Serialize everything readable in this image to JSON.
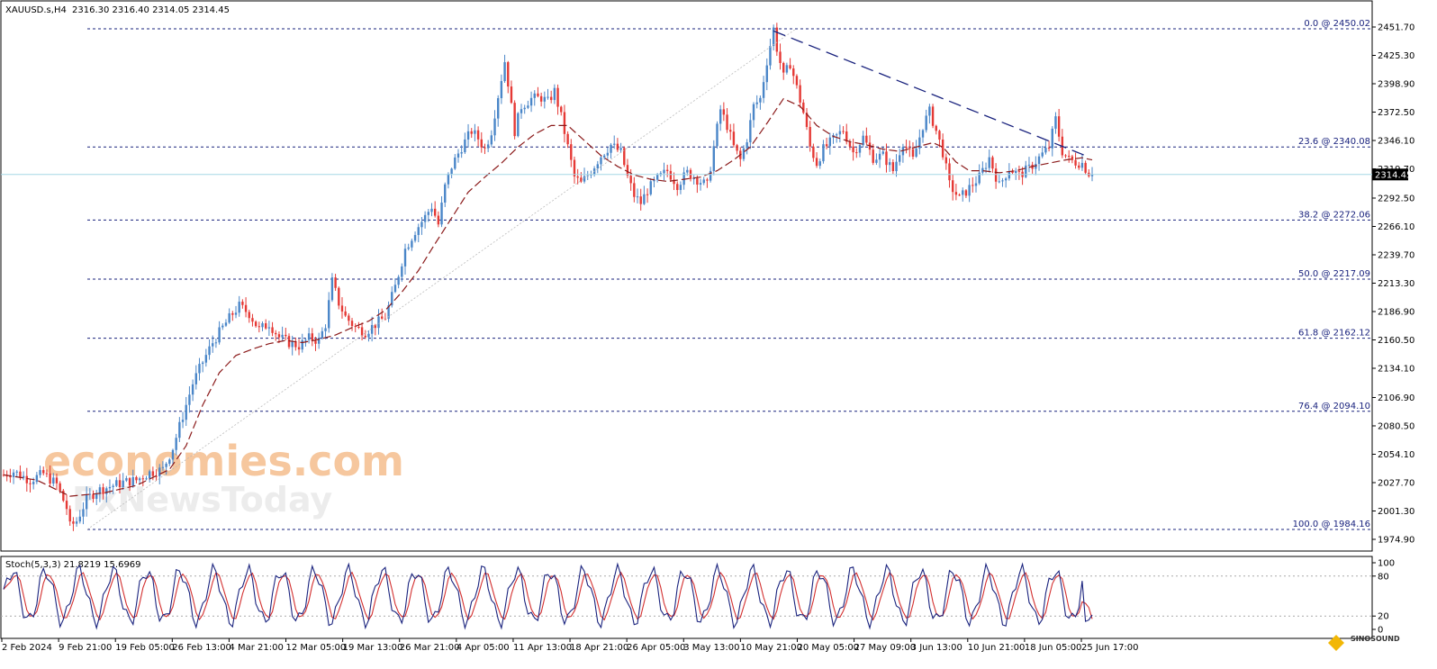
{
  "header": {
    "symbol": "XAUUSD.s,H4",
    "ohlc": "2316.30 2316.40 2314.05 2314.45"
  },
  "chart_data": {
    "type": "candlestick",
    "symbol": "XAUUSD.s",
    "timeframe": "H4",
    "ylim": [
      1974.9,
      2451.7
    ],
    "y_ticks": [
      "2451.70",
      "2425.30",
      "2398.90",
      "2372.50",
      "2346.10",
      "2319.70",
      "2292.50",
      "2266.10",
      "2239.70",
      "2213.30",
      "2186.90",
      "2160.50",
      "2134.10",
      "2106.90",
      "2080.50",
      "2054.10",
      "2027.70",
      "2001.30",
      "1974.90"
    ],
    "x_ticks": [
      "2 Feb 2024",
      "9 Feb 21:00",
      "19 Feb 05:00",
      "26 Feb 13:00",
      "4 Mar 21:00",
      "12 Mar 05:00",
      "19 Mar 13:00",
      "26 Mar 21:00",
      "4 Apr 05:00",
      "11 Apr 13:00",
      "18 Apr 21:00",
      "26 Apr 05:00",
      "3 May 13:00",
      "10 May 21:00",
      "20 May 05:00",
      "27 May 09:00",
      "3 Jun 13:00",
      "10 Jun 21:00",
      "18 Jun 05:00",
      "25 Jun 17:00"
    ],
    "current_price": "2314.45",
    "current_price_value": 2314.45,
    "bull_color": "#4a86c8",
    "bear_color": "#e53935",
    "ma_color": "#8b1a1a",
    "fib_levels": [
      {
        "label": "0.0 @ 2450.02",
        "value": 2450.02
      },
      {
        "label": "23.6 @ 2340.08",
        "value": 2340.08
      },
      {
        "label": "38.2 @ 2272.06",
        "value": 2272.06
      },
      {
        "label": "50.0 @ 2217.09",
        "value": 2217.09
      },
      {
        "label": "61.8 @ 2162.12",
        "value": 2162.12
      },
      {
        "label": "76.4 @ 2094.10",
        "value": 2094.1
      },
      {
        "label": "100.0 @ 1984.16",
        "value": 1984.16
      }
    ],
    "price_path": [
      [
        0,
        2035
      ],
      [
        3,
        2038
      ],
      [
        8,
        2030
      ],
      [
        12,
        2036
      ],
      [
        16,
        2026
      ],
      [
        19,
        2004
      ],
      [
        20,
        1987
      ],
      [
        22,
        1992
      ],
      [
        25,
        2012
      ],
      [
        28,
        2020
      ],
      [
        32,
        2024
      ],
      [
        36,
        2028
      ],
      [
        40,
        2030
      ],
      [
        44,
        2037
      ],
      [
        48,
        2040
      ],
      [
        51,
        2060
      ],
      [
        54,
        2090
      ],
      [
        57,
        2120
      ],
      [
        60,
        2140
      ],
      [
        63,
        2158
      ],
      [
        66,
        2172
      ],
      [
        69,
        2185
      ],
      [
        71,
        2192
      ],
      [
        74,
        2185
      ],
      [
        77,
        2170
      ],
      [
        80,
        2176
      ],
      [
        83,
        2163
      ],
      [
        86,
        2158
      ],
      [
        89,
        2155
      ],
      [
        92,
        2162
      ],
      [
        95,
        2160
      ],
      [
        97,
        2175
      ],
      [
        99,
        2215
      ],
      [
        101,
        2195
      ],
      [
        103,
        2182
      ],
      [
        106,
        2172
      ],
      [
        109,
        2168
      ],
      [
        112,
        2175
      ],
      [
        115,
        2182
      ],
      [
        118,
        2210
      ],
      [
        121,
        2245
      ],
      [
        124,
        2262
      ],
      [
        127,
        2275
      ],
      [
        129,
        2285
      ],
      [
        131,
        2268
      ],
      [
        133,
        2303
      ],
      [
        135,
        2322
      ],
      [
        138,
        2340
      ],
      [
        141,
        2355
      ],
      [
        143,
        2348
      ],
      [
        145,
        2338
      ],
      [
        147,
        2355
      ],
      [
        149,
        2388
      ],
      [
        151,
        2420
      ],
      [
        152,
        2400
      ],
      [
        154,
        2355
      ],
      [
        156,
        2378
      ],
      [
        159,
        2385
      ],
      [
        162,
        2386
      ],
      [
        164,
        2382
      ],
      [
        166,
        2392
      ],
      [
        168,
        2368
      ],
      [
        170,
        2340
      ],
      [
        172,
        2312
      ],
      [
        174,
        2306
      ],
      [
        177,
        2318
      ],
      [
        180,
        2332
      ],
      [
        183,
        2342
      ],
      [
        186,
        2335
      ],
      [
        188,
        2312
      ],
      [
        190,
        2295
      ],
      [
        192,
        2288
      ],
      [
        194,
        2300
      ],
      [
        197,
        2310
      ],
      [
        200,
        2318
      ],
      [
        203,
        2305
      ],
      [
        206,
        2316
      ],
      [
        209,
        2310
      ],
      [
        212,
        2304
      ],
      [
        214,
        2340
      ],
      [
        216,
        2375
      ],
      [
        218,
        2360
      ],
      [
        220,
        2340
      ],
      [
        222,
        2328
      ],
      [
        224,
        2348
      ],
      [
        226,
        2378
      ],
      [
        228,
        2385
      ],
      [
        230,
        2420
      ],
      [
        232,
        2450
      ],
      [
        233,
        2432
      ],
      [
        235,
        2405
      ],
      [
        237,
        2418
      ],
      [
        239,
        2395
      ],
      [
        241,
        2372
      ],
      [
        243,
        2340
      ],
      [
        245,
        2325
      ],
      [
        247,
        2338
      ],
      [
        250,
        2347
      ],
      [
        253,
        2356
      ],
      [
        256,
        2335
      ],
      [
        259,
        2349
      ],
      [
        262,
        2330
      ],
      [
        265,
        2332
      ],
      [
        268,
        2318
      ],
      [
        271,
        2345
      ],
      [
        274,
        2328
      ],
      [
        277,
        2360
      ],
      [
        279,
        2373
      ],
      [
        281,
        2355
      ],
      [
        283,
        2335
      ],
      [
        285,
        2305
      ],
      [
        288,
        2292
      ],
      [
        291,
        2302
      ],
      [
        294,
        2312
      ],
      [
        297,
        2330
      ],
      [
        300,
        2304
      ],
      [
        303,
        2320
      ],
      [
        306,
        2314
      ],
      [
        309,
        2320
      ],
      [
        312,
        2330
      ],
      [
        315,
        2340
      ],
      [
        317,
        2366
      ],
      [
        319,
        2336
      ],
      [
        321,
        2328
      ],
      [
        323,
        2326
      ],
      [
        325,
        2325
      ],
      [
        326,
        2320
      ],
      [
        327,
        2316
      ],
      [
        328,
        2314.45
      ]
    ],
    "ma_path": [
      [
        0,
        2035
      ],
      [
        10,
        2030
      ],
      [
        20,
        2015
      ],
      [
        30,
        2018
      ],
      [
        40,
        2025
      ],
      [
        50,
        2040
      ],
      [
        55,
        2062
      ],
      [
        60,
        2100
      ],
      [
        65,
        2130
      ],
      [
        70,
        2146
      ],
      [
        75,
        2152
      ],
      [
        80,
        2157
      ],
      [
        85,
        2160
      ],
      [
        90,
        2158
      ],
      [
        95,
        2161
      ],
      [
        100,
        2165
      ],
      [
        105,
        2172
      ],
      [
        110,
        2178
      ],
      [
        115,
        2188
      ],
      [
        120,
        2205
      ],
      [
        125,
        2225
      ],
      [
        130,
        2250
      ],
      [
        135,
        2274
      ],
      [
        140,
        2298
      ],
      [
        145,
        2312
      ],
      [
        150,
        2325
      ],
      [
        155,
        2340
      ],
      [
        160,
        2352
      ],
      [
        165,
        2360
      ],
      [
        170,
        2360
      ],
      [
        175,
        2346
      ],
      [
        180,
        2332
      ],
      [
        185,
        2322
      ],
      [
        190,
        2314
      ],
      [
        195,
        2310
      ],
      [
        200,
        2308
      ],
      [
        205,
        2310
      ],
      [
        210,
        2312
      ],
      [
        215,
        2318
      ],
      [
        220,
        2328
      ],
      [
        225,
        2340
      ],
      [
        230,
        2362
      ],
      [
        235,
        2385
      ],
      [
        240,
        2378
      ],
      [
        245,
        2360
      ],
      [
        250,
        2350
      ],
      [
        255,
        2345
      ],
      [
        260,
        2342
      ],
      [
        265,
        2338
      ],
      [
        270,
        2336
      ],
      [
        275,
        2340
      ],
      [
        280,
        2344
      ],
      [
        283,
        2340
      ],
      [
        287,
        2326
      ],
      [
        291,
        2318
      ],
      [
        295,
        2318
      ],
      [
        300,
        2316
      ],
      [
        305,
        2318
      ],
      [
        310,
        2322
      ],
      [
        315,
        2325
      ],
      [
        320,
        2328
      ],
      [
        325,
        2330
      ],
      [
        328,
        2328
      ]
    ],
    "trendline": [
      [
        232,
        2448
      ],
      [
        326,
        2332
      ]
    ],
    "stochastic": {
      "label": "Stoch(5,3,3) 21.8219 15.6969",
      "k": 21.8219,
      "d": 15.6969,
      "ylim": [
        0,
        100
      ],
      "levels": [
        "100",
        "80",
        "20",
        "0"
      ],
      "level_values": [
        100,
        80,
        20,
        0
      ],
      "k_color": "#1a237e",
      "d_color": "#d32f2f"
    }
  },
  "watermark": {
    "line1": "economies.com",
    "line2": "FxNewsToday",
    "logo_text": "SINOSOUND"
  }
}
